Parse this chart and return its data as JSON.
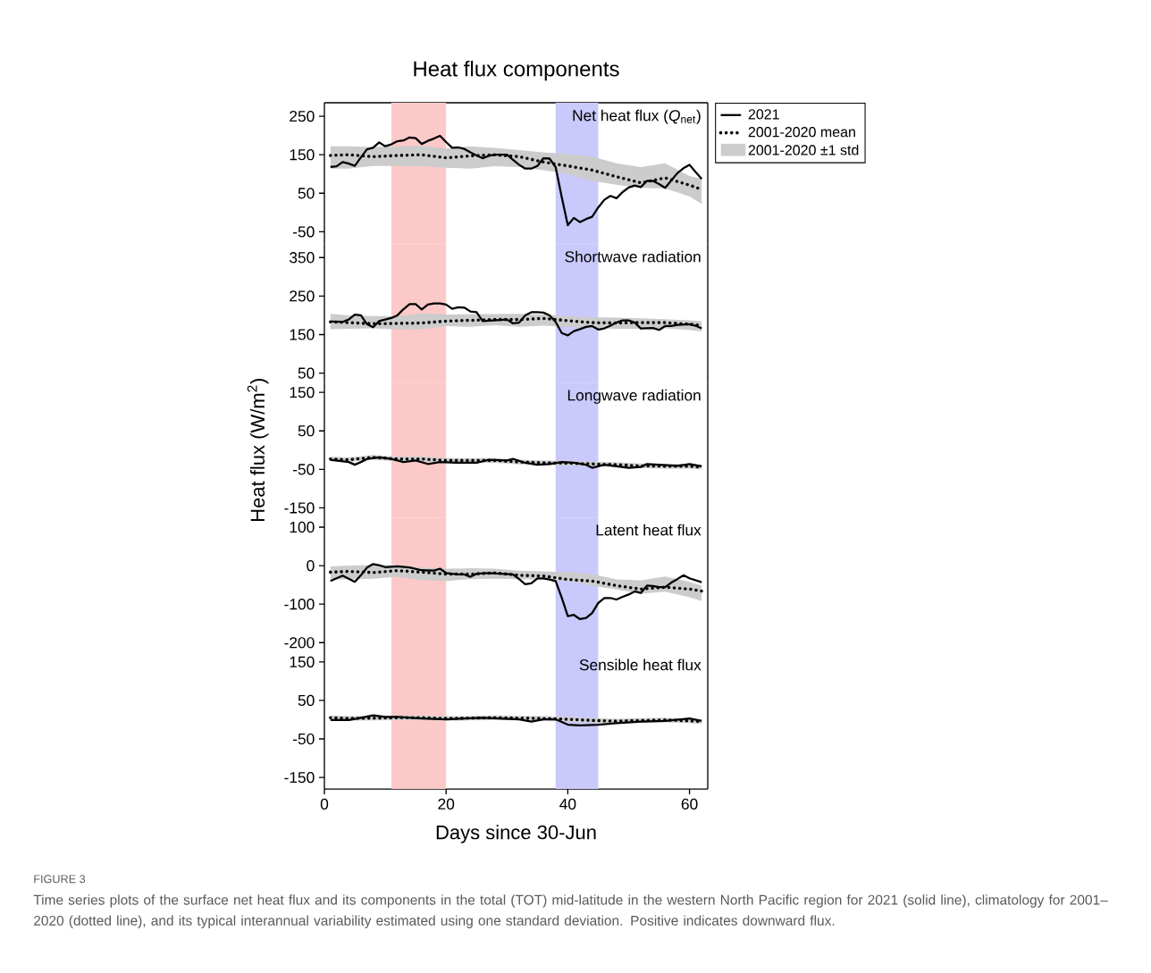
{
  "chart_data": [
    {
      "type": "line",
      "title": "Heat flux components",
      "annotations": [
        "Net heat flux (*Q*$_{net}$)",
        "2001-2020 ±1 std"
      ],
      "xlim": [
        0,
        63
      ],
      "xticks": [
        0,
        20,
        40,
        60
      ],
      "ylim": [
        -82,
        285
      ],
      "yticks": [
        -50,
        50,
        150,
        250
      ],
      "tick_labels": "y",
      "legend": "top right",
      "bands": [
        {
          "axis": "x",
          "from": 11,
          "to": 20,
          "color": "#fcc9c9"
        },
        {
          "axis": "x",
          "from": 38,
          "to": 45,
          "color": "#c9c9fb"
        }
      ],
      "series": [
        {
          "name": "2021",
          "color": "#000000",
          "line_style": "solid",
          "x": [
            1,
            2,
            3,
            4,
            5,
            6,
            7,
            8,
            9,
            10,
            11,
            12,
            13,
            14,
            15,
            16,
            17,
            18,
            19,
            20,
            21,
            22,
            23,
            24,
            25,
            26,
            27,
            28,
            29,
            30,
            31,
            32,
            33,
            34,
            35,
            36,
            37,
            38,
            39,
            40,
            41,
            42,
            43,
            44,
            45,
            46,
            47,
            48,
            49,
            50,
            51,
            52,
            53,
            54,
            55,
            56,
            57,
            58,
            59,
            60,
            61,
            62
          ],
          "values": [
            118,
            120,
            131,
            127,
            121,
            143,
            164,
            168,
            182,
            172,
            177,
            185,
            187,
            195,
            193,
            178,
            186,
            192,
            199,
            183,
            168,
            169,
            165,
            156,
            148,
            141,
            147,
            150,
            150,
            150,
            137,
            124,
            114,
            114,
            121,
            141,
            140,
            118,
            40,
            -33,
            -14,
            -25,
            -17,
            -11,
            13,
            33,
            43,
            37,
            53,
            65,
            70,
            66,
            82,
            82,
            74,
            64,
            83,
            102,
            115,
            124,
            105,
            87
          ]
        },
        {
          "name": "2001-2020 mean",
          "color": "#000000",
          "line_style": "dotted",
          "x": [
            1,
            4,
            8,
            12,
            16,
            20,
            24,
            28,
            32,
            36,
            40,
            44,
            48,
            52,
            56,
            60,
            62
          ],
          "values": [
            148,
            150,
            145,
            148,
            150,
            142,
            147,
            150,
            145,
            131,
            121,
            110,
            93,
            77,
            90,
            71,
            60
          ],
          "lower": [
            114,
            114,
            121,
            121,
            120,
            116,
            114,
            120,
            118,
            110,
            100,
            82,
            72,
            64,
            62,
            42,
            22
          ],
          "upper": [
            172,
            172,
            170,
            172,
            173,
            166,
            172,
            168,
            162,
            156,
            152,
            145,
            128,
            118,
            128,
            95,
            88
          ]
        }
      ]
    },
    {
      "type": "line",
      "annotations": [
        "Shortwave radiation"
      ],
      "xlim": [
        0,
        63
      ],
      "xticks": [
        0,
        20,
        40,
        60
      ],
      "ylim": [
        25,
        385
      ],
      "yticks": [
        50,
        150,
        250,
        350
      ],
      "tick_labels": "y",
      "bands": [
        {
          "axis": "x",
          "from": 11,
          "to": 20,
          "color": "#fcc9c9"
        },
        {
          "axis": "x",
          "from": 38,
          "to": 45,
          "color": "#c9c9fb"
        }
      ],
      "series": [
        {
          "color": "#000000",
          "line_style": "solid",
          "x": [
            1,
            3,
            4,
            5,
            6,
            7,
            8,
            9,
            11,
            12,
            13,
            14,
            15,
            16,
            17,
            18,
            19,
            20,
            21,
            22,
            23,
            24,
            25,
            26,
            28,
            30,
            31,
            32,
            33,
            34,
            35,
            36,
            37,
            38,
            39,
            40,
            41,
            42,
            43,
            44,
            45,
            46,
            47,
            48,
            49,
            50,
            51,
            52,
            54,
            55,
            56,
            57,
            58,
            60,
            61,
            62
          ],
          "values": [
            184,
            183,
            189,
            202,
            200,
            177,
            169,
            185,
            193,
            200,
            216,
            229,
            229,
            215,
            228,
            231,
            231,
            228,
            217,
            221,
            220,
            210,
            208,
            185,
            187,
            189,
            179,
            181,
            200,
            208,
            208,
            207,
            200,
            183,
            154,
            148,
            159,
            164,
            170,
            172,
            163,
            166,
            173,
            181,
            187,
            187,
            181,
            166,
            167,
            162,
            172,
            172,
            175,
            177,
            173,
            166
          ]
        },
        {
          "color": "#000000",
          "line_style": "dotted",
          "x": [
            1,
            4,
            8,
            12,
            16,
            20,
            24,
            28,
            32,
            36,
            40,
            44,
            48,
            52,
            56,
            60,
            62
          ],
          "values": [
            183,
            181,
            178,
            179,
            180,
            185,
            187,
            189,
            189,
            192,
            186,
            181,
            180,
            181,
            181,
            177,
            173
          ],
          "lower": [
            164,
            165,
            166,
            163,
            164,
            172,
            170,
            174,
            170,
            173,
            170,
            167,
            165,
            165,
            166,
            162,
            158
          ],
          "upper": [
            204,
            200,
            198,
            198,
            205,
            202,
            203,
            203,
            204,
            202,
            198,
            195,
            194,
            192,
            190,
            187,
            185
          ]
        }
      ]
    },
    {
      "type": "line",
      "ylabel": "Heat flux (W/m$^{2}$)",
      "annotations": [
        "Longwave radiation"
      ],
      "xlim": [
        0,
        63
      ],
      "xticks": [
        0,
        20,
        40,
        60
      ],
      "ylim": [
        -175,
        175
      ],
      "yticks": [
        -150,
        -50,
        50,
        150
      ],
      "tick_labels": "y",
      "bands": [
        {
          "axis": "x",
          "from": 11,
          "to": 20,
          "color": "#fcc9c9"
        },
        {
          "axis": "x",
          "from": 38,
          "to": 45,
          "color": "#c9c9fb"
        }
      ],
      "series": [
        {
          "color": "#000000",
          "line_style": "solid",
          "x": [
            1,
            4,
            5,
            6,
            7,
            9,
            11,
            13,
            15,
            17,
            19,
            22,
            25,
            27,
            30,
            31,
            33,
            35,
            37,
            39,
            41,
            43,
            44,
            46,
            48,
            50,
            52,
            53,
            55,
            58,
            60,
            62
          ],
          "values": [
            -25,
            -31,
            -38,
            -31,
            -23,
            -19,
            -23,
            -31,
            -27,
            -36,
            -31,
            -33,
            -33,
            -25,
            -27,
            -23,
            -33,
            -38,
            -36,
            -31,
            -33,
            -38,
            -46,
            -38,
            -42,
            -46,
            -44,
            -36,
            -38,
            -41,
            -36,
            -42
          ]
        },
        {
          "color": "#000000",
          "line_style": "dotted",
          "x": [
            1,
            4,
            8,
            12,
            16,
            20,
            24,
            28,
            32,
            36,
            40,
            44,
            48,
            52,
            56,
            60,
            62
          ],
          "values": [
            -23,
            -25,
            -19,
            -23,
            -23,
            -27,
            -27,
            -27,
            -31,
            -33,
            -34,
            -36,
            -38,
            -41,
            -42,
            -42,
            -44
          ],
          "lower": [
            -29,
            -31,
            -25,
            -29,
            -29,
            -33,
            -33,
            -33,
            -37,
            -39,
            -40,
            -42,
            -44,
            -47,
            -48,
            -48,
            -50
          ],
          "upper": [
            -17,
            -19,
            -13,
            -17,
            -17,
            -21,
            -21,
            -21,
            -25,
            -27,
            -28,
            -30,
            -32,
            -35,
            -36,
            -36,
            -38
          ]
        }
      ]
    },
    {
      "type": "line",
      "annotations": [
        "Latent heat flux"
      ],
      "xlim": [
        0,
        63
      ],
      "xticks": [
        0,
        20,
        40,
        60
      ],
      "ylim": [
        -225,
        125
      ],
      "yticks": [
        -200,
        -100,
        0,
        100
      ],
      "tick_labels": "y",
      "bands": [
        {
          "axis": "x",
          "from": 11,
          "to": 20,
          "color": "#fcc9c9"
        },
        {
          "axis": "x",
          "from": 38,
          "to": 45,
          "color": "#c9c9fb"
        }
      ],
      "series": [
        {
          "color": "#000000",
          "line_style": "solid",
          "x": [
            1,
            3,
            5,
            6,
            7,
            8,
            9,
            10,
            12,
            14,
            16,
            18,
            19,
            20,
            22,
            23,
            24,
            25,
            27,
            29,
            31,
            32,
            33,
            34,
            35,
            36,
            37,
            38,
            39,
            40,
            41,
            42,
            43,
            44,
            45,
            46,
            47,
            48,
            49,
            50,
            51,
            52,
            53,
            54,
            55,
            56,
            57,
            58,
            59,
            60,
            62
          ],
          "values": [
            -40,
            -26,
            -42,
            -25,
            -5,
            4,
            1,
            -4,
            -2,
            -5,
            -12,
            -13,
            -8,
            -19,
            -23,
            -23,
            -29,
            -21,
            -19,
            -21,
            -23,
            -35,
            -48,
            -46,
            -33,
            -33,
            -36,
            -40,
            -83,
            -131,
            -128,
            -139,
            -136,
            -123,
            -97,
            -84,
            -84,
            -88,
            -81,
            -75,
            -67,
            -71,
            -52,
            -53,
            -56,
            -56,
            -44,
            -35,
            -25,
            -33,
            -43
          ]
        },
        {
          "color": "#000000",
          "line_style": "dotted",
          "x": [
            1,
            4,
            8,
            12,
            16,
            20,
            24,
            28,
            32,
            36,
            40,
            44,
            48,
            52,
            56,
            60,
            62
          ],
          "values": [
            -17,
            -15,
            -18,
            -13,
            -17,
            -22,
            -22,
            -19,
            -25,
            -27,
            -36,
            -40,
            -52,
            -61,
            -56,
            -61,
            -66
          ],
          "lower": [
            -36,
            -36,
            -34,
            -29,
            -38,
            -40,
            -35,
            -34,
            -35,
            -36,
            -40,
            -52,
            -62,
            -73,
            -68,
            -82,
            -92
          ],
          "upper": [
            -2,
            0,
            2,
            2,
            -5,
            -8,
            -7,
            -8,
            -13,
            -15,
            -17,
            -22,
            -36,
            -38,
            -28,
            -42,
            -52
          ]
        }
      ]
    },
    {
      "type": "line",
      "xlabel": "Days since 30-Jun",
      "annotations": [
        "Sensible heat flux",
        "FIGURE 3",
        "Time series plots of the surface net heat flux and its components in the total (TOT) mid-latitude in the western North Pacific region for 2021 (solid line), climatology for 2001–2020 (dotted line), and its typical interannual variability estimated using one standard deviation. Positive indicates downward flux."
      ],
      "xlim": [
        0,
        63
      ],
      "xticks": [
        0,
        20,
        40,
        60
      ],
      "ylim": [
        -180,
        175
      ],
      "yticks": [
        -150,
        -50,
        50,
        150
      ],
      "bands": [
        {
          "axis": "x",
          "from": 11,
          "to": 20,
          "color": "#fcc9c9"
        },
        {
          "axis": "x",
          "from": 38,
          "to": 45,
          "color": "#c9c9fb"
        }
      ],
      "series": [
        {
          "color": "#000000",
          "line_style": "solid",
          "x": [
            1,
            4,
            6,
            8,
            10,
            12,
            16,
            20,
            26,
            32,
            34,
            36,
            38,
            40,
            42,
            45,
            48,
            52,
            56,
            60,
            62
          ],
          "values": [
            -1,
            -1,
            5,
            11,
            7,
            7,
            3,
            1,
            5,
            1,
            -5,
            1,
            1,
            -13,
            -15,
            -13,
            -9,
            -5,
            -3,
            3,
            -3
          ]
        },
        {
          "color": "#000000",
          "line_style": "dotted",
          "x": [
            1,
            4,
            8,
            12,
            16,
            20,
            24,
            28,
            32,
            36,
            40,
            44,
            48,
            52,
            56,
            60,
            62
          ],
          "values": [
            5,
            3,
            4,
            5,
            5,
            3,
            4,
            5,
            4,
            3,
            1,
            -2,
            -4,
            -2,
            -1,
            -3,
            -5
          ],
          "lower": [
            -1,
            -3,
            -2,
            -1,
            -1,
            -3,
            -2,
            -1,
            -2,
            -3,
            -5,
            -8,
            -10,
            -8,
            -7,
            -9,
            -11
          ],
          "upper": [
            11,
            9,
            10,
            11,
            11,
            9,
            10,
            11,
            10,
            9,
            7,
            4,
            2,
            4,
            5,
            3,
            1
          ]
        }
      ]
    }
  ]
}
